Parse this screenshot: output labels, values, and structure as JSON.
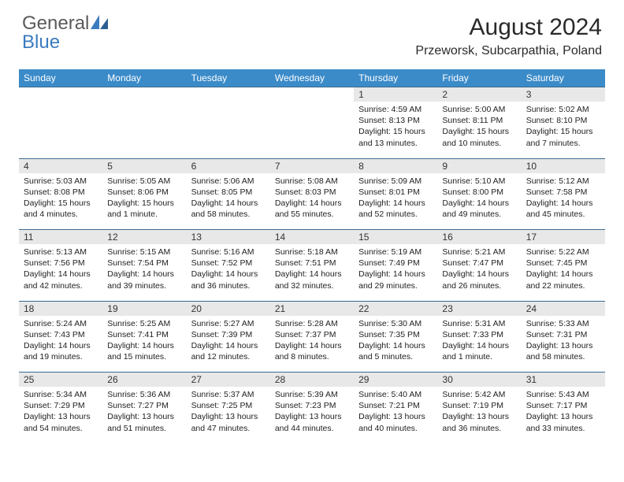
{
  "brand": {
    "part1": "General",
    "part2": "Blue"
  },
  "title": "August 2024",
  "location": "Przeworsk, Subcarpathia, Poland",
  "colors": {
    "header_bg": "#3b8bc9",
    "header_fg": "#ffffff",
    "daynum_bg": "#e8e8e8",
    "row_divider": "#3b6a8f",
    "brand_gray": "#5a5a5a",
    "brand_blue": "#3b7bbf"
  },
  "weekdays": [
    "Sunday",
    "Monday",
    "Tuesday",
    "Wednesday",
    "Thursday",
    "Friday",
    "Saturday"
  ],
  "weeks": [
    [
      null,
      null,
      null,
      null,
      {
        "n": "1",
        "sr": "Sunrise: 4:59 AM",
        "ss": "Sunset: 8:13 PM",
        "dl": "Daylight: 15 hours and 13 minutes."
      },
      {
        "n": "2",
        "sr": "Sunrise: 5:00 AM",
        "ss": "Sunset: 8:11 PM",
        "dl": "Daylight: 15 hours and 10 minutes."
      },
      {
        "n": "3",
        "sr": "Sunrise: 5:02 AM",
        "ss": "Sunset: 8:10 PM",
        "dl": "Daylight: 15 hours and 7 minutes."
      }
    ],
    [
      {
        "n": "4",
        "sr": "Sunrise: 5:03 AM",
        "ss": "Sunset: 8:08 PM",
        "dl": "Daylight: 15 hours and 4 minutes."
      },
      {
        "n": "5",
        "sr": "Sunrise: 5:05 AM",
        "ss": "Sunset: 8:06 PM",
        "dl": "Daylight: 15 hours and 1 minute."
      },
      {
        "n": "6",
        "sr": "Sunrise: 5:06 AM",
        "ss": "Sunset: 8:05 PM",
        "dl": "Daylight: 14 hours and 58 minutes."
      },
      {
        "n": "7",
        "sr": "Sunrise: 5:08 AM",
        "ss": "Sunset: 8:03 PM",
        "dl": "Daylight: 14 hours and 55 minutes."
      },
      {
        "n": "8",
        "sr": "Sunrise: 5:09 AM",
        "ss": "Sunset: 8:01 PM",
        "dl": "Daylight: 14 hours and 52 minutes."
      },
      {
        "n": "9",
        "sr": "Sunrise: 5:10 AM",
        "ss": "Sunset: 8:00 PM",
        "dl": "Daylight: 14 hours and 49 minutes."
      },
      {
        "n": "10",
        "sr": "Sunrise: 5:12 AM",
        "ss": "Sunset: 7:58 PM",
        "dl": "Daylight: 14 hours and 45 minutes."
      }
    ],
    [
      {
        "n": "11",
        "sr": "Sunrise: 5:13 AM",
        "ss": "Sunset: 7:56 PM",
        "dl": "Daylight: 14 hours and 42 minutes."
      },
      {
        "n": "12",
        "sr": "Sunrise: 5:15 AM",
        "ss": "Sunset: 7:54 PM",
        "dl": "Daylight: 14 hours and 39 minutes."
      },
      {
        "n": "13",
        "sr": "Sunrise: 5:16 AM",
        "ss": "Sunset: 7:52 PM",
        "dl": "Daylight: 14 hours and 36 minutes."
      },
      {
        "n": "14",
        "sr": "Sunrise: 5:18 AM",
        "ss": "Sunset: 7:51 PM",
        "dl": "Daylight: 14 hours and 32 minutes."
      },
      {
        "n": "15",
        "sr": "Sunrise: 5:19 AM",
        "ss": "Sunset: 7:49 PM",
        "dl": "Daylight: 14 hours and 29 minutes."
      },
      {
        "n": "16",
        "sr": "Sunrise: 5:21 AM",
        "ss": "Sunset: 7:47 PM",
        "dl": "Daylight: 14 hours and 26 minutes."
      },
      {
        "n": "17",
        "sr": "Sunrise: 5:22 AM",
        "ss": "Sunset: 7:45 PM",
        "dl": "Daylight: 14 hours and 22 minutes."
      }
    ],
    [
      {
        "n": "18",
        "sr": "Sunrise: 5:24 AM",
        "ss": "Sunset: 7:43 PM",
        "dl": "Daylight: 14 hours and 19 minutes."
      },
      {
        "n": "19",
        "sr": "Sunrise: 5:25 AM",
        "ss": "Sunset: 7:41 PM",
        "dl": "Daylight: 14 hours and 15 minutes."
      },
      {
        "n": "20",
        "sr": "Sunrise: 5:27 AM",
        "ss": "Sunset: 7:39 PM",
        "dl": "Daylight: 14 hours and 12 minutes."
      },
      {
        "n": "21",
        "sr": "Sunrise: 5:28 AM",
        "ss": "Sunset: 7:37 PM",
        "dl": "Daylight: 14 hours and 8 minutes."
      },
      {
        "n": "22",
        "sr": "Sunrise: 5:30 AM",
        "ss": "Sunset: 7:35 PM",
        "dl": "Daylight: 14 hours and 5 minutes."
      },
      {
        "n": "23",
        "sr": "Sunrise: 5:31 AM",
        "ss": "Sunset: 7:33 PM",
        "dl": "Daylight: 14 hours and 1 minute."
      },
      {
        "n": "24",
        "sr": "Sunrise: 5:33 AM",
        "ss": "Sunset: 7:31 PM",
        "dl": "Daylight: 13 hours and 58 minutes."
      }
    ],
    [
      {
        "n": "25",
        "sr": "Sunrise: 5:34 AM",
        "ss": "Sunset: 7:29 PM",
        "dl": "Daylight: 13 hours and 54 minutes."
      },
      {
        "n": "26",
        "sr": "Sunrise: 5:36 AM",
        "ss": "Sunset: 7:27 PM",
        "dl": "Daylight: 13 hours and 51 minutes."
      },
      {
        "n": "27",
        "sr": "Sunrise: 5:37 AM",
        "ss": "Sunset: 7:25 PM",
        "dl": "Daylight: 13 hours and 47 minutes."
      },
      {
        "n": "28",
        "sr": "Sunrise: 5:39 AM",
        "ss": "Sunset: 7:23 PM",
        "dl": "Daylight: 13 hours and 44 minutes."
      },
      {
        "n": "29",
        "sr": "Sunrise: 5:40 AM",
        "ss": "Sunset: 7:21 PM",
        "dl": "Daylight: 13 hours and 40 minutes."
      },
      {
        "n": "30",
        "sr": "Sunrise: 5:42 AM",
        "ss": "Sunset: 7:19 PM",
        "dl": "Daylight: 13 hours and 36 minutes."
      },
      {
        "n": "31",
        "sr": "Sunrise: 5:43 AM",
        "ss": "Sunset: 7:17 PM",
        "dl": "Daylight: 13 hours and 33 minutes."
      }
    ]
  ]
}
